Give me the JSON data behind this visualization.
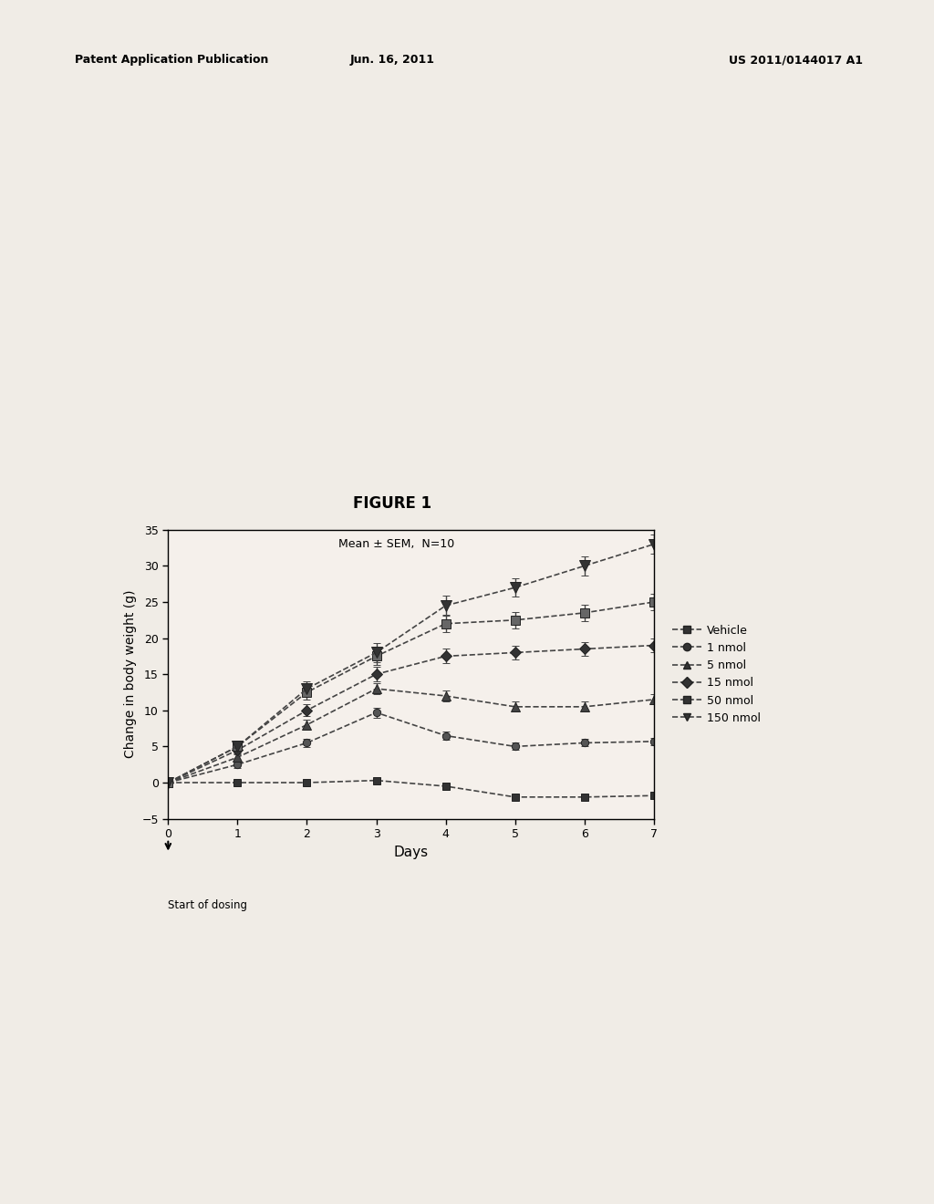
{
  "title": "FIGURE 1",
  "subtitle": "Mean ± SEM,  N=10",
  "xlabel": "Days",
  "ylabel": "Change in body weight (g)",
  "header_left": "Patent Application Publication",
  "header_center": "Jun. 16, 2011",
  "header_right": "US 2011/0144017 A1",
  "xlim": [
    0,
    7
  ],
  "ylim": [
    -5,
    35
  ],
  "yticks": [
    -5,
    0,
    5,
    10,
    15,
    20,
    25,
    30,
    35
  ],
  "xticks": [
    0,
    1,
    2,
    3,
    4,
    5,
    6,
    7
  ],
  "days": [
    0,
    1,
    2,
    3,
    4,
    5,
    6,
    7
  ],
  "series": [
    {
      "label": "Vehicle",
      "color": "#444444",
      "marker": "s",
      "linestyle": "--",
      "y": [
        0,
        0,
        0,
        0.3,
        -0.5,
        -2.0,
        -2.0,
        -1.8
      ],
      "yerr": [
        0.3,
        0.3,
        0.3,
        0.3,
        0.4,
        0.4,
        0.4,
        0.4
      ]
    },
    {
      "label": "1 nmol",
      "color": "#444444",
      "marker": "o",
      "linestyle": "--",
      "y": [
        0,
        2.5,
        5.5,
        9.7,
        6.5,
        5.0,
        5.5,
        5.7
      ],
      "yerr": [
        0.3,
        0.5,
        0.6,
        0.7,
        0.6,
        0.5,
        0.5,
        0.5
      ]
    },
    {
      "label": "5 nmol",
      "color": "#444444",
      "marker": "^",
      "linestyle": "--",
      "y": [
        0,
        3.5,
        8.0,
        13.0,
        12.0,
        10.5,
        10.5,
        11.5
      ],
      "yerr": [
        0.3,
        0.5,
        0.7,
        0.8,
        0.8,
        0.7,
        0.7,
        0.7
      ]
    },
    {
      "label": "15 nmol",
      "color": "#444444",
      "marker": "D",
      "linestyle": "--",
      "y": [
        0,
        4.5,
        10.0,
        15.0,
        17.5,
        18.0,
        18.5,
        19.0
      ],
      "yerr": [
        0.3,
        0.6,
        0.8,
        1.0,
        1.0,
        0.9,
        0.9,
        0.9
      ]
    },
    {
      "label": "50 nmol",
      "color": "#444444",
      "marker": "s",
      "linestyle": "--",
      "y": [
        0,
        5.0,
        12.5,
        17.5,
        22.0,
        22.5,
        23.5,
        25.0
      ],
      "yerr": [
        0.3,
        0.7,
        1.0,
        1.2,
        1.2,
        1.1,
        1.1,
        1.1
      ]
    },
    {
      "label": "150 nmol",
      "color": "#444444",
      "marker": "v",
      "linestyle": "--",
      "y": [
        0,
        5.0,
        13.0,
        18.0,
        24.5,
        27.0,
        30.0,
        33.0
      ],
      "yerr": [
        0.3,
        0.8,
        1.0,
        1.3,
        1.4,
        1.3,
        1.3,
        1.3
      ]
    }
  ],
  "annotation_text": "Start of dosing",
  "background_color": "#f5f0eb",
  "page_background": "#f0ece6"
}
